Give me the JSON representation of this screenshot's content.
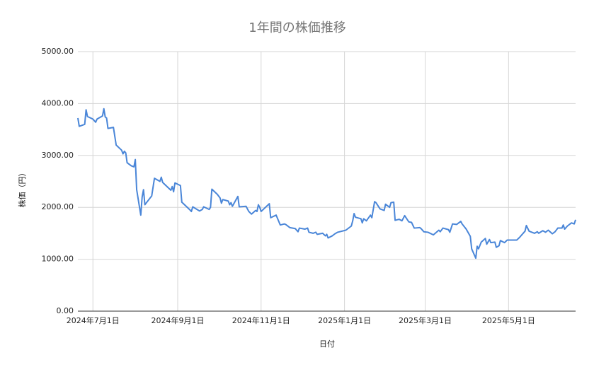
{
  "chart_data": {
    "type": "line",
    "title": "1年間の株価推移",
    "x_label": "日付",
    "y_label": "株価（円）",
    "color": "#4a86d8",
    "grid": true,
    "xlim": [
      "2024-06-20",
      "2025-06-19"
    ],
    "xticks": [
      {
        "value": "2024-07-01",
        "label": "2024年7月1日"
      },
      {
        "value": "2024-09-01",
        "label": "2024年9月1日"
      },
      {
        "value": "2024-11-01",
        "label": "2024年11月1日"
      },
      {
        "value": "2025-01-01",
        "label": "2025年1月1日"
      },
      {
        "value": "2025-03-01",
        "label": "2025年3月1日"
      },
      {
        "value": "2025-05-01",
        "label": "2025年5月1日"
      }
    ],
    "ylim": [
      0,
      5000
    ],
    "yticks": [
      {
        "value": 0,
        "label": "0.00"
      },
      {
        "value": 1000,
        "label": "1000.00"
      },
      {
        "value": 2000,
        "label": "2000.00"
      },
      {
        "value": 3000,
        "label": "3000.00"
      },
      {
        "value": 4000,
        "label": "4000.00"
      },
      {
        "value": 5000,
        "label": "5000.00"
      }
    ],
    "x": [
      "2024-06-20",
      "2024-06-21",
      "2024-06-25",
      "2024-06-26",
      "2024-06-27",
      "2024-07-01",
      "2024-07-03",
      "2024-07-04",
      "2024-07-08",
      "2024-07-09",
      "2024-07-10",
      "2024-07-11",
      "2024-07-12",
      "2024-07-16",
      "2024-07-18",
      "2024-07-22",
      "2024-07-23",
      "2024-07-24",
      "2024-07-25",
      "2024-07-26",
      "2024-07-29",
      "2024-07-31",
      "2024-08-01",
      "2024-08-02",
      "2024-08-05",
      "2024-08-06",
      "2024-08-07",
      "2024-08-08",
      "2024-08-13",
      "2024-08-15",
      "2024-08-19",
      "2024-08-20",
      "2024-08-21",
      "2024-08-27",
      "2024-08-28",
      "2024-08-29",
      "2024-08-30",
      "2024-09-03",
      "2024-09-04",
      "2024-09-06",
      "2024-09-10",
      "2024-09-11",
      "2024-09-12",
      "2024-09-17",
      "2024-09-19",
      "2024-09-20",
      "2024-09-24",
      "2024-09-25",
      "2024-09-26",
      "2024-09-30",
      "2024-10-02",
      "2024-10-03",
      "2024-10-04",
      "2024-10-08",
      "2024-10-09",
      "2024-10-10",
      "2024-10-11",
      "2024-10-15",
      "2024-10-16",
      "2024-10-21",
      "2024-10-23",
      "2024-10-25",
      "2024-10-28",
      "2024-10-29",
      "2024-10-30",
      "2024-10-31",
      "2024-11-01",
      "2024-11-05",
      "2024-11-07",
      "2024-11-08",
      "2024-11-12",
      "2024-11-15",
      "2024-11-18",
      "2024-11-19",
      "2024-11-22",
      "2024-11-26",
      "2024-11-28",
      "2024-11-29",
      "2024-12-03",
      "2024-12-05",
      "2024-12-06",
      "2024-12-09",
      "2024-12-11",
      "2024-12-12",
      "2024-12-16",
      "2024-12-18",
      "2024-12-19",
      "2024-12-20",
      "2024-12-23",
      "2024-12-25",
      "2024-12-27",
      "2025-01-02",
      "2025-01-06",
      "2025-01-07",
      "2025-01-08",
      "2025-01-09",
      "2025-01-13",
      "2025-01-14",
      "2025-01-15",
      "2025-01-17",
      "2025-01-20",
      "2025-01-21",
      "2025-01-23",
      "2025-01-24",
      "2025-01-27",
      "2025-01-30",
      "2025-01-31",
      "2025-02-03",
      "2025-02-04",
      "2025-02-06",
      "2025-02-07",
      "2025-02-10",
      "2025-02-12",
      "2025-02-14",
      "2025-02-17",
      "2025-02-19",
      "2025-02-21",
      "2025-02-25",
      "2025-02-26",
      "2025-02-28",
      "2025-03-03",
      "2025-03-07",
      "2025-03-11",
      "2025-03-12",
      "2025-03-14",
      "2025-03-18",
      "2025-03-19",
      "2025-03-21",
      "2025-03-24",
      "2025-03-27",
      "2025-03-28",
      "2025-03-31",
      "2025-04-03",
      "2025-04-04",
      "2025-04-07",
      "2025-04-08",
      "2025-04-09",
      "2025-04-11",
      "2025-04-14",
      "2025-04-15",
      "2025-04-17",
      "2025-04-18",
      "2025-04-21",
      "2025-04-22",
      "2025-04-24",
      "2025-04-25",
      "2025-04-28",
      "2025-04-30",
      "2025-05-07",
      "2025-05-09",
      "2025-05-13",
      "2025-05-14",
      "2025-05-16",
      "2025-05-20",
      "2025-05-22",
      "2025-05-23",
      "2025-05-26",
      "2025-05-28",
      "2025-05-30",
      "2025-06-02",
      "2025-06-04",
      "2025-06-06",
      "2025-06-09",
      "2025-06-10",
      "2025-06-11",
      "2025-06-13",
      "2025-06-16",
      "2025-06-18",
      "2025-06-19"
    ],
    "values": [
      3720,
      3560,
      3600,
      3880,
      3750,
      3700,
      3640,
      3700,
      3760,
      3900,
      3740,
      3720,
      3520,
      3540,
      3200,
      3100,
      3030,
      3080,
      3050,
      2860,
      2800,
      2780,
      2920,
      2340,
      1850,
      2200,
      2340,
      2050,
      2220,
      2560,
      2500,
      2580,
      2480,
      2330,
      2400,
      2300,
      2470,
      2420,
      2100,
      2050,
      1950,
      1920,
      2010,
      1930,
      1960,
      2010,
      1960,
      2000,
      2350,
      2250,
      2180,
      2080,
      2150,
      2120,
      2050,
      2090,
      2020,
      2210,
      2010,
      2020,
      1920,
      1870,
      1940,
      1920,
      2050,
      2000,
      1920,
      2020,
      2070,
      1800,
      1850,
      1660,
      1680,
      1670,
      1610,
      1590,
      1530,
      1600,
      1580,
      1600,
      1520,
      1500,
      1520,
      1480,
      1500,
      1450,
      1480,
      1410,
      1450,
      1490,
      1520,
      1560,
      1640,
      1740,
      1880,
      1810,
      1780,
      1700,
      1780,
      1740,
      1850,
      1800,
      2110,
      2090,
      1970,
      1940,
      2060,
      2000,
      2090,
      2100,
      1750,
      1770,
      1740,
      1840,
      1720,
      1710,
      1600,
      1610,
      1590,
      1530,
      1520,
      1470,
      1560,
      1530,
      1600,
      1570,
      1520,
      1680,
      1670,
      1730,
      1680,
      1580,
      1440,
      1200,
      1020,
      1250,
      1200,
      1330,
      1400,
      1290,
      1380,
      1320,
      1330,
      1230,
      1260,
      1360,
      1320,
      1370,
      1370,
      1420,
      1540,
      1650,
      1540,
      1500,
      1530,
      1500,
      1550,
      1520,
      1560,
      1490,
      1530,
      1600,
      1600,
      1660,
      1580,
      1640,
      1700,
      1680,
      1760
    ]
  }
}
